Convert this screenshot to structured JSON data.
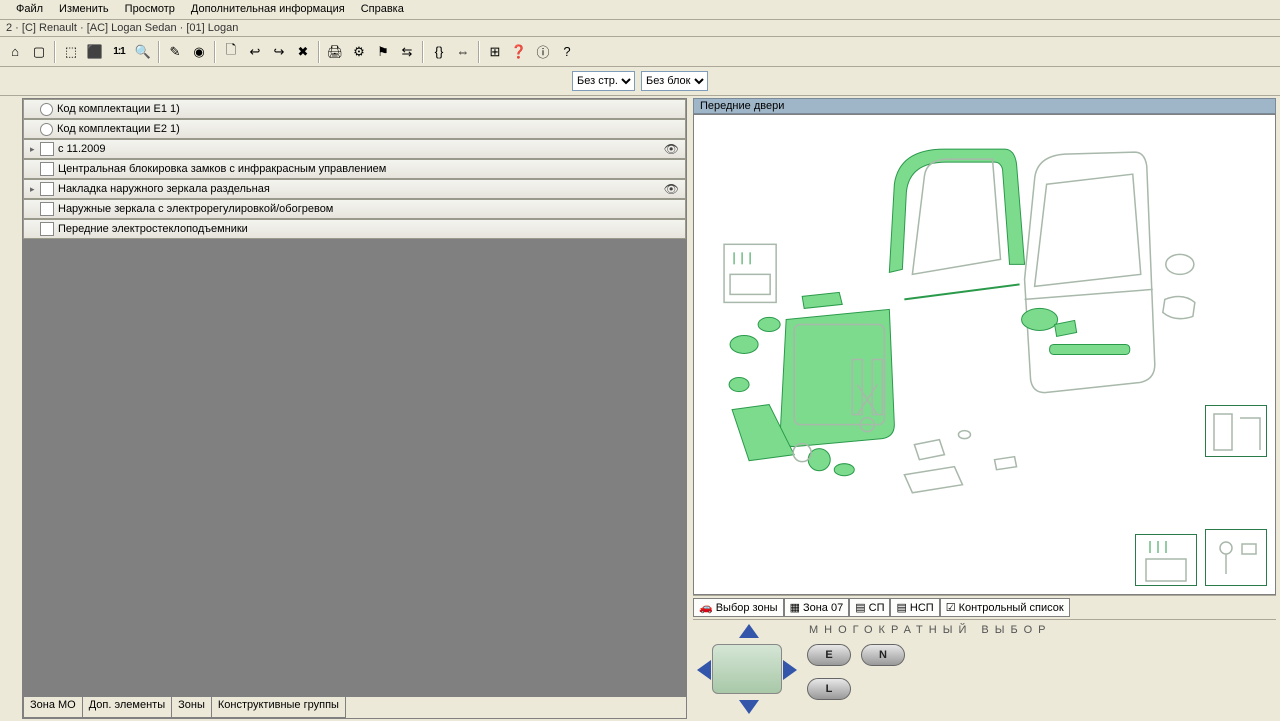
{
  "menu": {
    "items": [
      "Файл",
      "Изменить",
      "Просмотр",
      "Дополнительная информация",
      "Справка"
    ]
  },
  "breadcrumb": "2 · [C] Renault · [AC] Logan Sedan · [01] Logan",
  "toolbar": {
    "icons": [
      "⌂",
      "▢",
      "|",
      "⬚",
      "⬛",
      "1:1",
      "🔍",
      "|",
      "✎",
      "◉",
      "|",
      "🗋",
      "↩",
      "↪",
      "✖",
      "|",
      "🖨",
      "⚙",
      "⚑",
      "⇆",
      "|",
      "{}",
      "⇔",
      "|",
      "⊞",
      "❓",
      "ⓘ",
      "?"
    ]
  },
  "filters": {
    "opt1": "Без стр.",
    "opt2": "Без блок"
  },
  "tree": [
    {
      "type": "radio",
      "label": "Код комплектации Е1 1)"
    },
    {
      "type": "radio",
      "label": "Код комплектации Е2 1)"
    },
    {
      "type": "check",
      "label": "с 11.2009",
      "expander": true,
      "eye": true
    },
    {
      "type": "check",
      "label": "Центральная блокировка замков с инфракрасным управлением"
    },
    {
      "type": "check",
      "label": "Накладка наружного зеркала раздельная",
      "expander": true,
      "eye": true
    },
    {
      "type": "check",
      "label": "Наружные зеркала с электрорегулировкой/обогревом"
    },
    {
      "type": "check",
      "label": "Передние электростеклоподъемники"
    }
  ],
  "bottomTabs": [
    "Зона МО",
    "Доп. элементы",
    "Зоны",
    "Конструктивные группы"
  ],
  "diagram": {
    "title": "Передние двери",
    "highlight_color": "#7ddb8e",
    "outline_color": "#a8b8aa"
  },
  "zoneTabs": [
    {
      "icon": "🚗",
      "label": "Выбор зоны"
    },
    {
      "icon": "▦",
      "label": "Зона 07"
    },
    {
      "icon": "▤",
      "label": "СП"
    },
    {
      "icon": "▤",
      "label": "НСП"
    },
    {
      "icon": "☑",
      "label": "Контрольный список"
    }
  ],
  "multiSelect": {
    "title": "МНОГОКРАТНЫЙ ВЫБОР",
    "buttons": [
      "E",
      "N",
      "L"
    ]
  }
}
